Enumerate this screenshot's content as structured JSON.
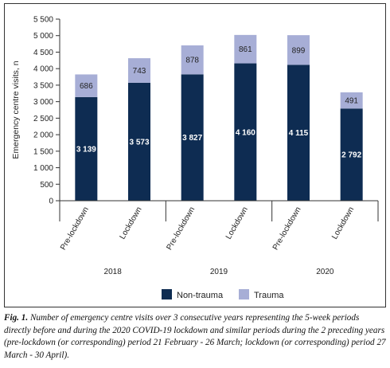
{
  "chart_data": {
    "type": "bar",
    "stacked": true,
    "ylabel": "Emergency centre visits, n",
    "ylim": [
      0,
      5500
    ],
    "yticks": [
      "0",
      "500",
      "1 000",
      "1 500",
      "2 000",
      "2 500",
      "3 000",
      "3 500",
      "4 000",
      "4 500",
      "5 000",
      "5 500"
    ],
    "categories": [
      "Pre-lockdown",
      "Lockdown",
      "Pre-lockdown",
      "Lockdown",
      "Pre-lockdown",
      "Lockdown"
    ],
    "groups": [
      "2018",
      "2019",
      "2020"
    ],
    "series": [
      {
        "name": "Non-trauma",
        "color": "#0e2c52",
        "values": [
          3139,
          3573,
          3827,
          4160,
          4115,
          2792
        ],
        "labels": [
          "3 139",
          "3 573",
          "3 827",
          "4 160",
          "4 115",
          "2 792"
        ]
      },
      {
        "name": "Trauma",
        "color": "#a7aed6",
        "values": [
          686,
          743,
          878,
          861,
          899,
          491
        ],
        "labels": [
          "686",
          "743",
          "878",
          "861",
          "899",
          "491"
        ]
      }
    ],
    "legend": {
      "position": "bottom"
    },
    "grid": false
  },
  "caption": {
    "lead": "Fig. 1.",
    "text": " Number of emergency centre visits over 3 consecutive years representing the 5-week periods directly before and during the 2020 COVID-19 lockdown and similar periods during the 2 preceding years (pre-lockdown (or corresponding) period 21 February - 26 March; lockdown (or corresponding) period 27 March - 30 April)."
  }
}
